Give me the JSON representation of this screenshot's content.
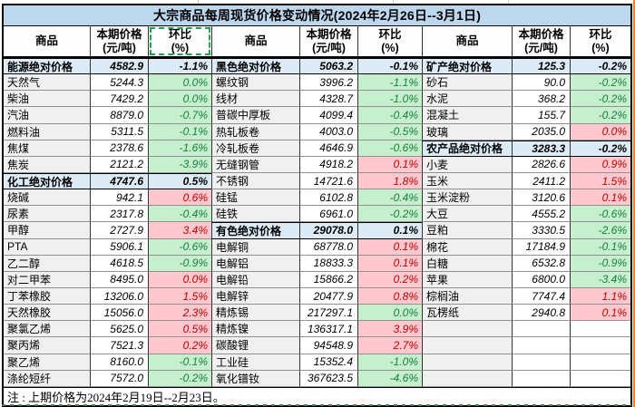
{
  "title": "大宗商品每周现货价格变动情况(2024年2月26日--3月1日)",
  "note": "注 : 上期价格为2024年2月19日--2月23日。",
  "header": {
    "commodity": "商品",
    "price_line1": "本期价格",
    "price_line2": "(元/吨)",
    "change_line1": "环比",
    "change_line2": "(%)"
  },
  "colors": {
    "title_bg": "#BDD7EE",
    "summary_bg": "#DDEBF7",
    "name_bg": "#F0F0F0",
    "up_bg": "#FFC7CE",
    "up_text": "#C00000",
    "down_bg": "#C6EFCE",
    "down_text": "#17803D",
    "marquee": "#1fa254",
    "edge_orange": "#ED7D31"
  },
  "groups": [
    {
      "rows": [
        {
          "name": "能源绝对价格",
          "price": "4582.9",
          "change": "-1.1%",
          "trend": "summary"
        },
        {
          "name": "天然气",
          "price": "5244.3",
          "change": "0.0%",
          "trend": "down"
        },
        {
          "name": "柴油",
          "price": "7429.2",
          "change": "0.0%",
          "trend": "down"
        },
        {
          "name": "汽油",
          "price": "8879.0",
          "change": "-0.7%",
          "trend": "down"
        },
        {
          "name": "燃料油",
          "price": "5311.5",
          "change": "-0.1%",
          "trend": "down"
        },
        {
          "name": "焦煤",
          "price": "2378.6",
          "change": "-1.6%",
          "trend": "down"
        },
        {
          "name": "焦炭",
          "price": "2121.2",
          "change": "-3.9%",
          "trend": "down"
        },
        {
          "name": "化工绝对价格",
          "price": "4747.6",
          "change": "0.5%",
          "trend": "summary"
        },
        {
          "name": "烧碱",
          "price": "942.1",
          "change": "0.6%",
          "trend": "up"
        },
        {
          "name": "尿素",
          "price": "2317.8",
          "change": "-0.4%",
          "trend": "down"
        },
        {
          "name": "甲醇",
          "price": "2727.9",
          "change": "3.4%",
          "trend": "up"
        },
        {
          "name": "PTA",
          "price": "5906.1",
          "change": "-0.6%",
          "trend": "down"
        },
        {
          "name": "乙二醇",
          "price": "4618.5",
          "change": "-0.9%",
          "trend": "down"
        },
        {
          "name": "对二甲苯",
          "price": "8495.0",
          "change": "0.0%",
          "trend": "up"
        },
        {
          "name": "丁苯橡胶",
          "price": "13206.0",
          "change": "1.5%",
          "trend": "up"
        },
        {
          "name": "天然橡胶",
          "price": "15056.0",
          "change": "2.3%",
          "trend": "up"
        },
        {
          "name": "聚氯乙烯",
          "price": "5625.0",
          "change": "0.5%",
          "trend": "up"
        },
        {
          "name": "聚丙烯",
          "price": "7521.3",
          "change": "0.2%",
          "trend": "up"
        },
        {
          "name": "聚乙烯",
          "price": "8160.0",
          "change": "-0.1%",
          "trend": "down"
        },
        {
          "name": "涤纶短纤",
          "price": "7572.0",
          "change": "-0.2%",
          "trend": "down"
        }
      ]
    },
    {
      "rows": [
        {
          "name": "黑色绝对价格",
          "price": "5063.2",
          "change": "-0.1%",
          "trend": "summary"
        },
        {
          "name": "螺纹钢",
          "price": "3996.2",
          "change": "-1.1%",
          "trend": "down"
        },
        {
          "name": "线材",
          "price": "4328.7",
          "change": "-1.0%",
          "trend": "down"
        },
        {
          "name": "普碳中厚板",
          "price": "4099.4",
          "change": "-0.4%",
          "trend": "down"
        },
        {
          "name": "热轧板卷",
          "price": "4003.0",
          "change": "-0.5%",
          "trend": "down"
        },
        {
          "name": "冷轧板卷",
          "price": "4646.9",
          "change": "-0.6%",
          "trend": "down"
        },
        {
          "name": "无缝钢管",
          "price": "4918.2",
          "change": "0.1%",
          "trend": "up"
        },
        {
          "name": "不锈钢",
          "price": "14721.6",
          "change": "1.8%",
          "trend": "up"
        },
        {
          "name": "硅锰",
          "price": "6102.8",
          "change": "-0.4%",
          "trend": "down"
        },
        {
          "name": "硅铁",
          "price": "6961.0",
          "change": "-0.2%",
          "trend": "down"
        },
        {
          "name": "有色绝对价格",
          "price": "29078.0",
          "change": "0.1%",
          "trend": "summary"
        },
        {
          "name": "电解铜",
          "price": "68778.0",
          "change": "0.1%",
          "trend": "up"
        },
        {
          "name": "电解铝",
          "price": "18833.3",
          "change": "0.1%",
          "trend": "up"
        },
        {
          "name": "电解铅",
          "price": "15866.2",
          "change": "0.2%",
          "trend": "up"
        },
        {
          "name": "电解锌",
          "price": "20477.9",
          "change": "0.8%",
          "trend": "up"
        },
        {
          "name": "精炼锡",
          "price": "217297.1",
          "change": "0.0%",
          "trend": "down"
        },
        {
          "name": "精炼镍",
          "price": "136317.1",
          "change": "3.9%",
          "trend": "up"
        },
        {
          "name": "碳酸锂",
          "price": "94548.9",
          "change": "2.7%",
          "trend": "up"
        },
        {
          "name": "工业硅",
          "price": "15352.4",
          "change": "-1.0%",
          "trend": "down"
        },
        {
          "name": "氧化镨钕",
          "price": "367623.5",
          "change": "-4.6%",
          "trend": "down"
        }
      ]
    },
    {
      "rows": [
        {
          "name": "矿产绝对价格",
          "price": "125.3",
          "change": "-0.2%",
          "trend": "summary"
        },
        {
          "name": "砂石",
          "price": "90.0",
          "change": "-0.2%",
          "trend": "down"
        },
        {
          "name": "水泥",
          "price": "368.2",
          "change": "-0.2%",
          "trend": "down"
        },
        {
          "name": "混凝土",
          "price": "155.7",
          "change": "-0.2%",
          "trend": "down"
        },
        {
          "name": "玻璃",
          "price": "2035.0",
          "change": "0.0%",
          "trend": "up"
        },
        {
          "name": "农产品绝对价格",
          "price": "3283.3",
          "change": "-0.2%",
          "trend": "summary"
        },
        {
          "name": "小麦",
          "price": "2826.6",
          "change": "0.9%",
          "trend": "up"
        },
        {
          "name": "玉米",
          "price": "2411.2",
          "change": "1.5%",
          "trend": "up"
        },
        {
          "name": "玉米淀粉",
          "price": "3120.6",
          "change": "0.1%",
          "trend": "up"
        },
        {
          "name": "大豆",
          "price": "4555.2",
          "change": "-0.6%",
          "trend": "down"
        },
        {
          "name": "豆粕",
          "price": "3330.5",
          "change": "-2.6%",
          "trend": "down"
        },
        {
          "name": "棉花",
          "price": "17184.9",
          "change": "-0.1%",
          "trend": "down"
        },
        {
          "name": "白糖",
          "price": "6532.8",
          "change": "-0.9%",
          "trend": "down"
        },
        {
          "name": "苹果",
          "price": "6800.0",
          "change": "-3.4%",
          "trend": "down"
        },
        {
          "name": "棕榈油",
          "price": "7747.4",
          "change": "1.1%",
          "trend": "up"
        },
        {
          "name": "瓦楞纸",
          "price": "2940.8",
          "change": "0.1%",
          "trend": "up"
        },
        {
          "name": "",
          "price": "",
          "change": "",
          "trend": "empty"
        },
        {
          "name": "",
          "price": "",
          "change": "",
          "trend": "empty"
        },
        {
          "name": "",
          "price": "",
          "change": "",
          "trend": "empty"
        },
        {
          "name": "",
          "price": "",
          "change": "",
          "trend": "empty"
        }
      ]
    }
  ]
}
